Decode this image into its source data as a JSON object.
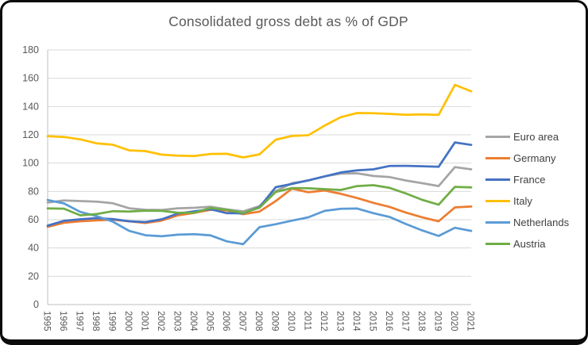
{
  "window": {
    "frame_color": "#0b0b0b",
    "background": "#ffffff"
  },
  "chart_data": {
    "type": "line",
    "title": "Consolidated gross debt as % of GDP",
    "xlabel": "",
    "ylabel": "",
    "ylim": [
      0,
      180
    ],
    "yticks": [
      0,
      20,
      40,
      60,
      80,
      100,
      120,
      140,
      160,
      180
    ],
    "grid": true,
    "legend_position": "right",
    "categories": [
      "1995",
      "1996",
      "1997",
      "1998",
      "1999",
      "2000",
      "2001",
      "2002",
      "2003",
      "2004",
      "2005",
      "2006",
      "2007",
      "2008",
      "2009",
      "2010",
      "2011",
      "2012",
      "2013",
      "2014",
      "2015",
      "2016",
      "2017",
      "2018",
      "2019",
      "2020",
      "2021"
    ],
    "series": [
      {
        "name": "Euro area",
        "color": "#A5A5A5",
        "values": [
          72.1,
          73.6,
          73.2,
          72.8,
          71.6,
          68.1,
          67.0,
          66.9,
          68.1,
          68.4,
          69.2,
          67.3,
          65.9,
          69.6,
          80.2,
          85.8,
          87.7,
          90.7,
          92.6,
          92.8,
          90.9,
          90.1,
          87.7,
          85.8,
          83.8,
          97.2,
          95.6
        ]
      },
      {
        "name": "Germany",
        "color": "#ED7D31",
        "values": [
          54.9,
          57.8,
          58.9,
          59.5,
          60.0,
          58.9,
          57.7,
          59.4,
          63.1,
          64.8,
          67.0,
          66.5,
          63.9,
          65.7,
          73.2,
          82.0,
          79.4,
          80.7,
          78.3,
          75.3,
          71.9,
          69.0,
          65.0,
          61.6,
          58.9,
          68.7,
          69.3
        ]
      },
      {
        "name": "France",
        "color": "#4472C4",
        "values": [
          55.8,
          59.2,
          60.3,
          61.1,
          60.4,
          58.9,
          58.3,
          60.3,
          64.4,
          65.9,
          67.4,
          64.6,
          64.5,
          68.8,
          83.0,
          85.3,
          87.8,
          90.6,
          93.4,
          94.9,
          95.6,
          98.0,
          98.1,
          97.8,
          97.4,
          114.6,
          112.9
        ]
      },
      {
        "name": "Italy",
        "color": "#FFC000",
        "values": [
          119.0,
          118.5,
          116.8,
          114.0,
          113.0,
          109.0,
          108.5,
          106.0,
          105.3,
          105.0,
          106.5,
          106.6,
          104.0,
          106.2,
          116.6,
          119.2,
          119.7,
          126.5,
          132.5,
          135.4,
          135.3,
          134.8,
          134.2,
          134.4,
          134.1,
          155.3,
          150.8
        ]
      },
      {
        "name": "Netherlands",
        "color": "#5B9BD5",
        "values": [
          73.9,
          71.5,
          65.5,
          62.6,
          58.6,
          52.1,
          49.0,
          48.3,
          49.4,
          49.8,
          48.9,
          44.7,
          42.7,
          54.7,
          56.8,
          59.3,
          61.7,
          66.2,
          67.7,
          67.9,
          64.6,
          61.9,
          56.9,
          52.4,
          48.5,
          54.3,
          52.1
        ]
      },
      {
        "name": "Austria",
        "color": "#70AD47",
        "values": [
          68.0,
          67.8,
          63.1,
          64.0,
          66.0,
          65.7,
          66.4,
          66.2,
          64.9,
          64.9,
          68.3,
          67.0,
          64.7,
          68.4,
          79.6,
          82.4,
          82.2,
          81.6,
          81.0,
          83.8,
          84.4,
          82.5,
          78.5,
          74.0,
          70.6,
          83.2,
          82.8
        ]
      }
    ],
    "styles": {
      "title_color": "#595959",
      "tick_color": "#595959",
      "legend_color": "#404040",
      "gridline_color": "#D9D9D9",
      "axis_color": "#BFBFBF"
    }
  }
}
